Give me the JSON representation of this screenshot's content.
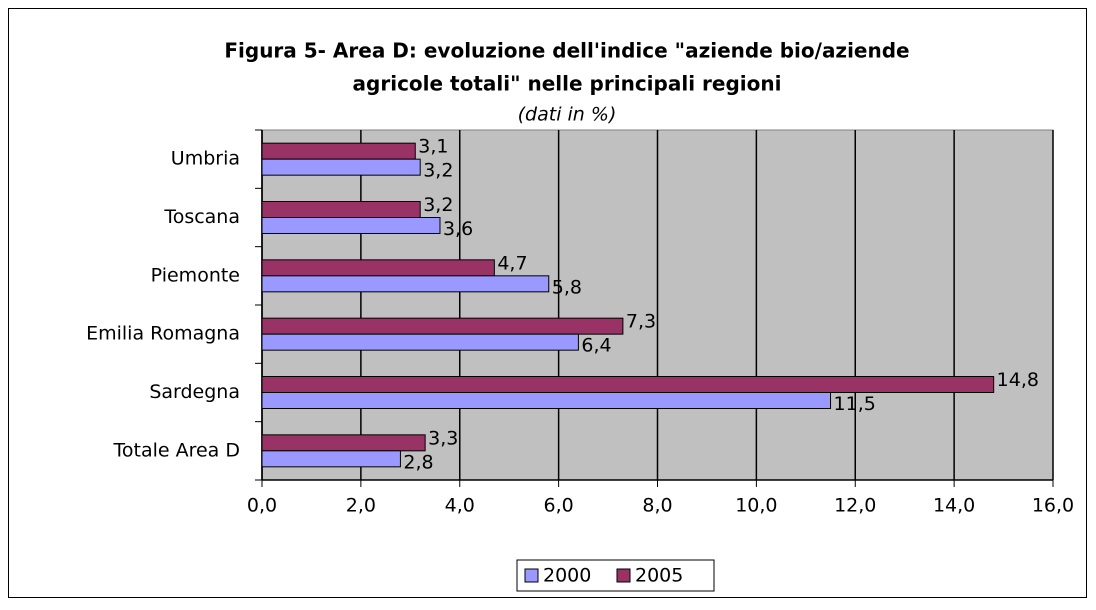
{
  "chart_data": {
    "type": "bar",
    "orientation": "horizontal",
    "title": [
      "Figura 5- Area D: evoluzione dell'indice \"aziende bio/aziende",
      "agricole totali\" nelle principali regioni"
    ],
    "subtitle": "(dati in %)",
    "categories": [
      "Umbria",
      "Toscana",
      "Piemonte",
      "Emilia Romagna",
      "Sardegna",
      "Totale Area D"
    ],
    "series": [
      {
        "name": "2000",
        "color": "#9999ff",
        "values": [
          3.2,
          3.6,
          5.8,
          6.4,
          11.5,
          2.8
        ],
        "value_labels": [
          "3,2",
          "3,6",
          "5,8",
          "6,4",
          "11,5",
          "2,8"
        ]
      },
      {
        "name": "2005",
        "color": "#993366",
        "values": [
          3.1,
          3.2,
          4.7,
          7.3,
          14.8,
          3.3
        ],
        "value_labels": [
          "3,1",
          "3,2",
          "4,7",
          "7,3",
          "14,8",
          "3,3"
        ]
      }
    ],
    "xlim": [
      0,
      16
    ],
    "xticks": [
      {
        "value": 0,
        "label": "0,0"
      },
      {
        "value": 2,
        "label": "2,0"
      },
      {
        "value": 4,
        "label": "4,0"
      },
      {
        "value": 6,
        "label": "6,0"
      },
      {
        "value": 8,
        "label": "8,0"
      },
      {
        "value": 10,
        "label": "10,0"
      },
      {
        "value": 12,
        "label": "12,0"
      },
      {
        "value": 14,
        "label": "14,0"
      },
      {
        "value": 16,
        "label": "16,0"
      }
    ],
    "grid": true,
    "legend": "bottom",
    "plot_background": "#c0c0c0"
  }
}
